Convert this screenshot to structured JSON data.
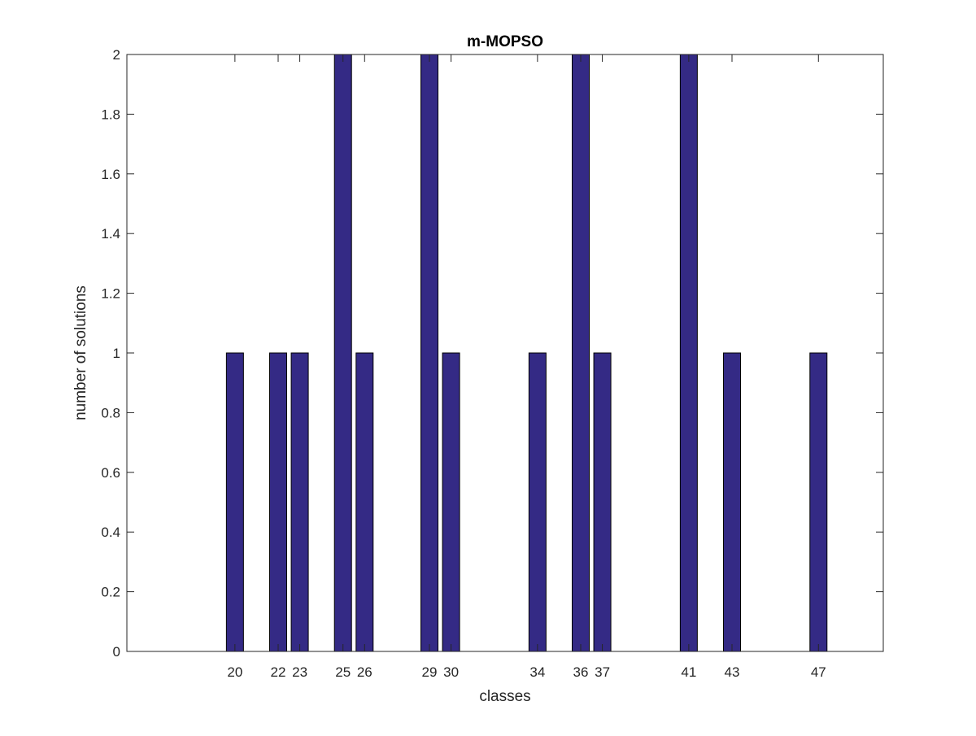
{
  "chart_data": {
    "type": "bar",
    "title": "m-MOPSO",
    "xlabel": "classes",
    "ylabel": "number of solutions",
    "x": [
      20,
      22,
      23,
      25,
      26,
      29,
      30,
      34,
      36,
      37,
      41,
      43,
      47
    ],
    "values": [
      1,
      1,
      1,
      2,
      1,
      2,
      1,
      1,
      2,
      1,
      2,
      1,
      1
    ],
    "xlim": [
      15,
      50
    ],
    "ylim": [
      0,
      2
    ],
    "yticks": [
      "0",
      "0.2",
      "0.4",
      "0.6",
      "0.8",
      "1",
      "1.2",
      "1.4",
      "1.6",
      "1.8",
      "2"
    ],
    "xticks": [
      "20",
      "22",
      "23",
      "25",
      "26",
      "29",
      "30",
      "34",
      "36",
      "37",
      "41",
      "43",
      "47"
    ],
    "grid": false,
    "bar_color": "#342a85",
    "edge_color": "#000000"
  }
}
